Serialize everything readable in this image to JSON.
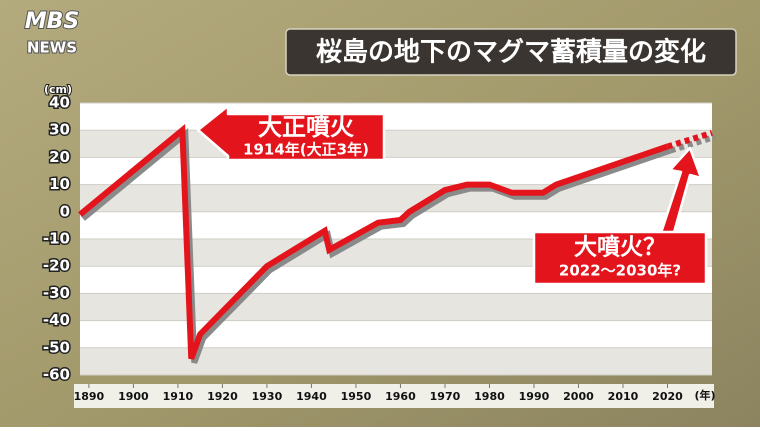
{
  "chart_data": {
    "type": "line",
    "logo": [
      "MBS",
      "NEWS"
    ],
    "title": "桜島の地下のマグマ蓄積量の変化",
    "y_unit": "(cm)",
    "x_unit": "(年)",
    "xlim": [
      1888,
      2030
    ],
    "xticks": [
      1890,
      1900,
      1910,
      1920,
      1930,
      1940,
      1950,
      1960,
      1970,
      1980,
      1990,
      2000,
      2010,
      2020
    ],
    "ylim": [
      -60,
      40
    ],
    "yticks": [
      40,
      30,
      20,
      10,
      0,
      -10,
      -20,
      -30,
      -40,
      -50,
      -60
    ],
    "grid": true,
    "series": [
      {
        "color": "#e3141b",
        "style": "solid",
        "x": [
          1888,
          1911,
          1913,
          1915,
          1930,
          1943,
          1944,
          1955,
          1960,
          1962,
          1970,
          1975,
          1980,
          1985,
          1992,
          1995,
          2020
        ],
        "values": [
          -1,
          30,
          -54,
          -45,
          -20,
          -7,
          -14,
          -4,
          -3,
          0,
          8,
          10,
          10,
          7,
          7,
          10,
          24
        ]
      },
      {
        "color": "#e3141b",
        "style": "dashed",
        "x": [
          2020,
          2030
        ],
        "values": [
          24,
          29
        ]
      }
    ],
    "annotations": [
      {
        "text": "大正噴火",
        "subtext": "1914年(大正3年)"
      },
      {
        "text": "大噴火？",
        "subtext": "2022～2030年?"
      }
    ]
  }
}
